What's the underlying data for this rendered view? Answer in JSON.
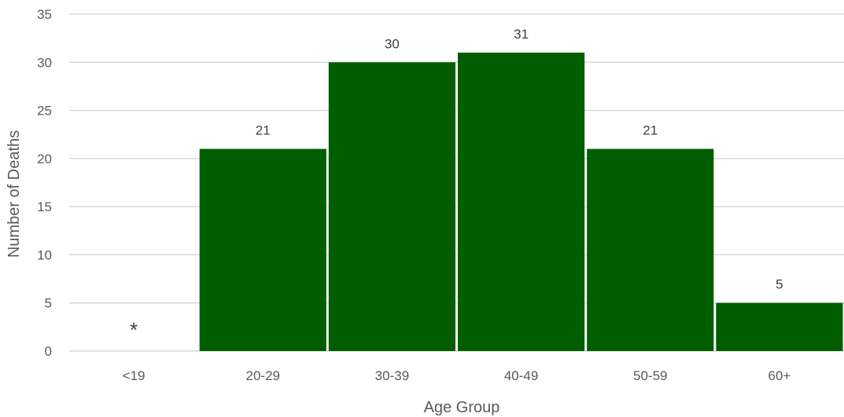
{
  "chart_data": {
    "type": "bar",
    "categories": [
      "<19",
      "20-29",
      "30-39",
      "40-49",
      "50-59",
      "60+"
    ],
    "values": [
      null,
      21,
      30,
      31,
      21,
      5
    ],
    "data_labels": [
      "*",
      "21",
      "30",
      "31",
      "21",
      "5"
    ],
    "xlabel": "Age Group",
    "ylabel": "Number of Deaths",
    "ylim": [
      0,
      35
    ],
    "yticks": [
      "0",
      "5",
      "10",
      "15",
      "20",
      "25",
      "30",
      "35"
    ],
    "grid": true,
    "bar_color": "#005E00",
    "grid_color": "#D9D9D9",
    "legend": "none"
  }
}
